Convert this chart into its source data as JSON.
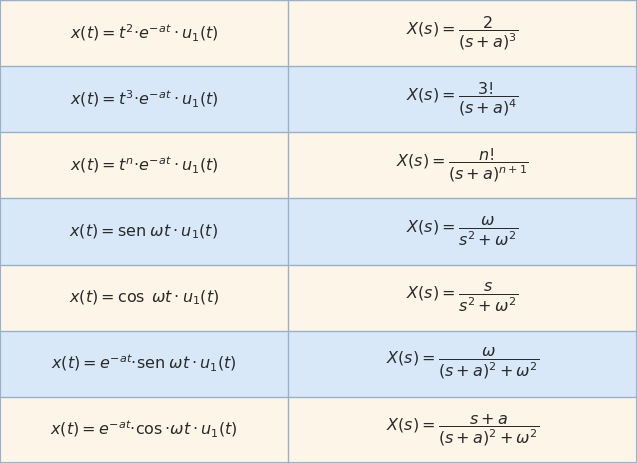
{
  "rows": [
    {
      "left": "x(t) = t^{2}{\\cdot}e^{-at} \\cdot u_1(t)",
      "right": "X(s) = \\dfrac{2}{(s+a)^3}",
      "bg": "#fdf5e8"
    },
    {
      "left": "x(t) = t^{3}{\\cdot}e^{-at} \\cdot u_1(t)",
      "right": "X(s) = \\dfrac{3!}{(s+a)^4}",
      "bg": "#d8e8f8"
    },
    {
      "left": "x(t) = t^{n}{\\cdot}e^{-at} \\cdot u_1(t)",
      "right": "X(s) = \\dfrac{n!}{(s+a)^{n+1}}",
      "bg": "#fdf5e8"
    },
    {
      "left": "x(t) = \\mathrm{sen}\\;\\omega t \\cdot u_1(t)",
      "right": "X(s) = \\dfrac{\\omega}{s^2 + \\omega^2}",
      "bg": "#d8e8f8"
    },
    {
      "left": "x(t) = \\cos\\;\\omega t \\cdot u_1(t)",
      "right": "X(s) = \\dfrac{s}{s^2 + \\omega^2}",
      "bg": "#fdf5e8"
    },
    {
      "left": "x(t) = e^{-at}{\\cdot}\\mathrm{sen}\\;\\omega t \\cdot u_1(t)",
      "right": "X(s) = \\dfrac{\\omega}{(s+a)^2 + \\omega^2}",
      "bg": "#d8e8f8"
    },
    {
      "left": "x(t) = e^{-at}{\\cdot}\\cos{\\cdot}\\omega t \\cdot u_1(t)",
      "right": "X(s) = \\dfrac{s+a}{(s+a)^2 + \\omega^2}",
      "bg": "#fdf5e8"
    }
  ],
  "border_color": "#9ab0c8",
  "text_color": "#2a2a2a",
  "font_size": 11.5,
  "col_split": 0.452,
  "fig_width": 6.37,
  "fig_height": 4.63,
  "dpi": 100
}
